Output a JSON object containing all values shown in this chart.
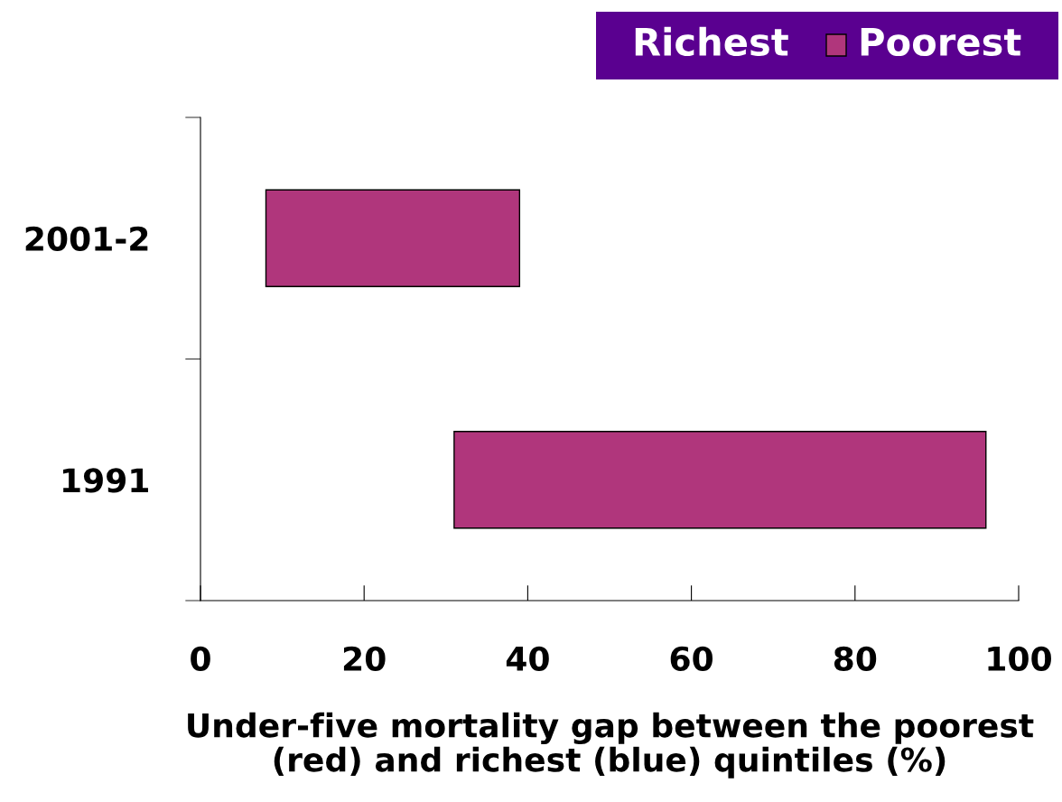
{
  "chart_data": {
    "type": "bar",
    "orientation": "horizontal",
    "categories": [
      "2001-2",
      "1991"
    ],
    "series": [
      {
        "color": "#b0367c",
        "base": [
          8,
          31
        ],
        "values": [
          31,
          65
        ]
      }
    ],
    "xlim": [
      0,
      100
    ],
    "xticks": [
      0,
      20,
      40,
      60,
      80,
      100
    ],
    "xlabel": "Under-five mortality gap between the poorest\n(red) and richest (blue) quintiles (%)",
    "annotations": [
      "Richest",
      "Poorest"
    ],
    "grid": false
  }
}
